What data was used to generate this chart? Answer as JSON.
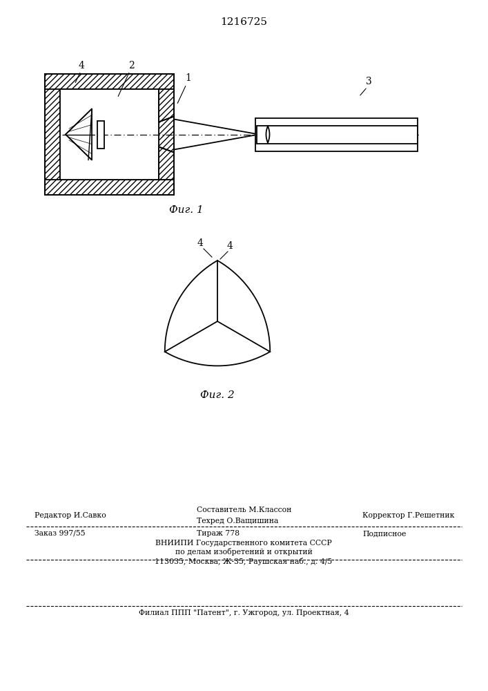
{
  "title": "1216725",
  "fig1_caption": "Фиг. 1",
  "fig2_caption": "Фиг. 2",
  "bg_color": "#ffffff",
  "line_color": "#000000",
  "label1": "1",
  "label2": "2",
  "label3": "3",
  "label4": "4",
  "footer_line1": "Редактор И.Савко",
  "footer_col2_line1": "Составитель М.Классон",
  "footer_col2_line2": "Техред О.Ващишина",
  "footer_col3": "Корректор Г.Решетник",
  "footer_order": "Заказ 997/55",
  "footer_tirazh": "Тираж 778",
  "footer_podpisnoe": "Подписное",
  "footer_vniiipi": "ВНИИПИ Государственного комитета СССР",
  "footer_po_delam": "по делам изобретений и открытий",
  "footer_address": "113035, Москва, Ж-35, Раушская наб., д. 4/5",
  "footer_filial": "Филиал ППП \"Патент\", г. Ужгород, ул. Проектная, 4"
}
